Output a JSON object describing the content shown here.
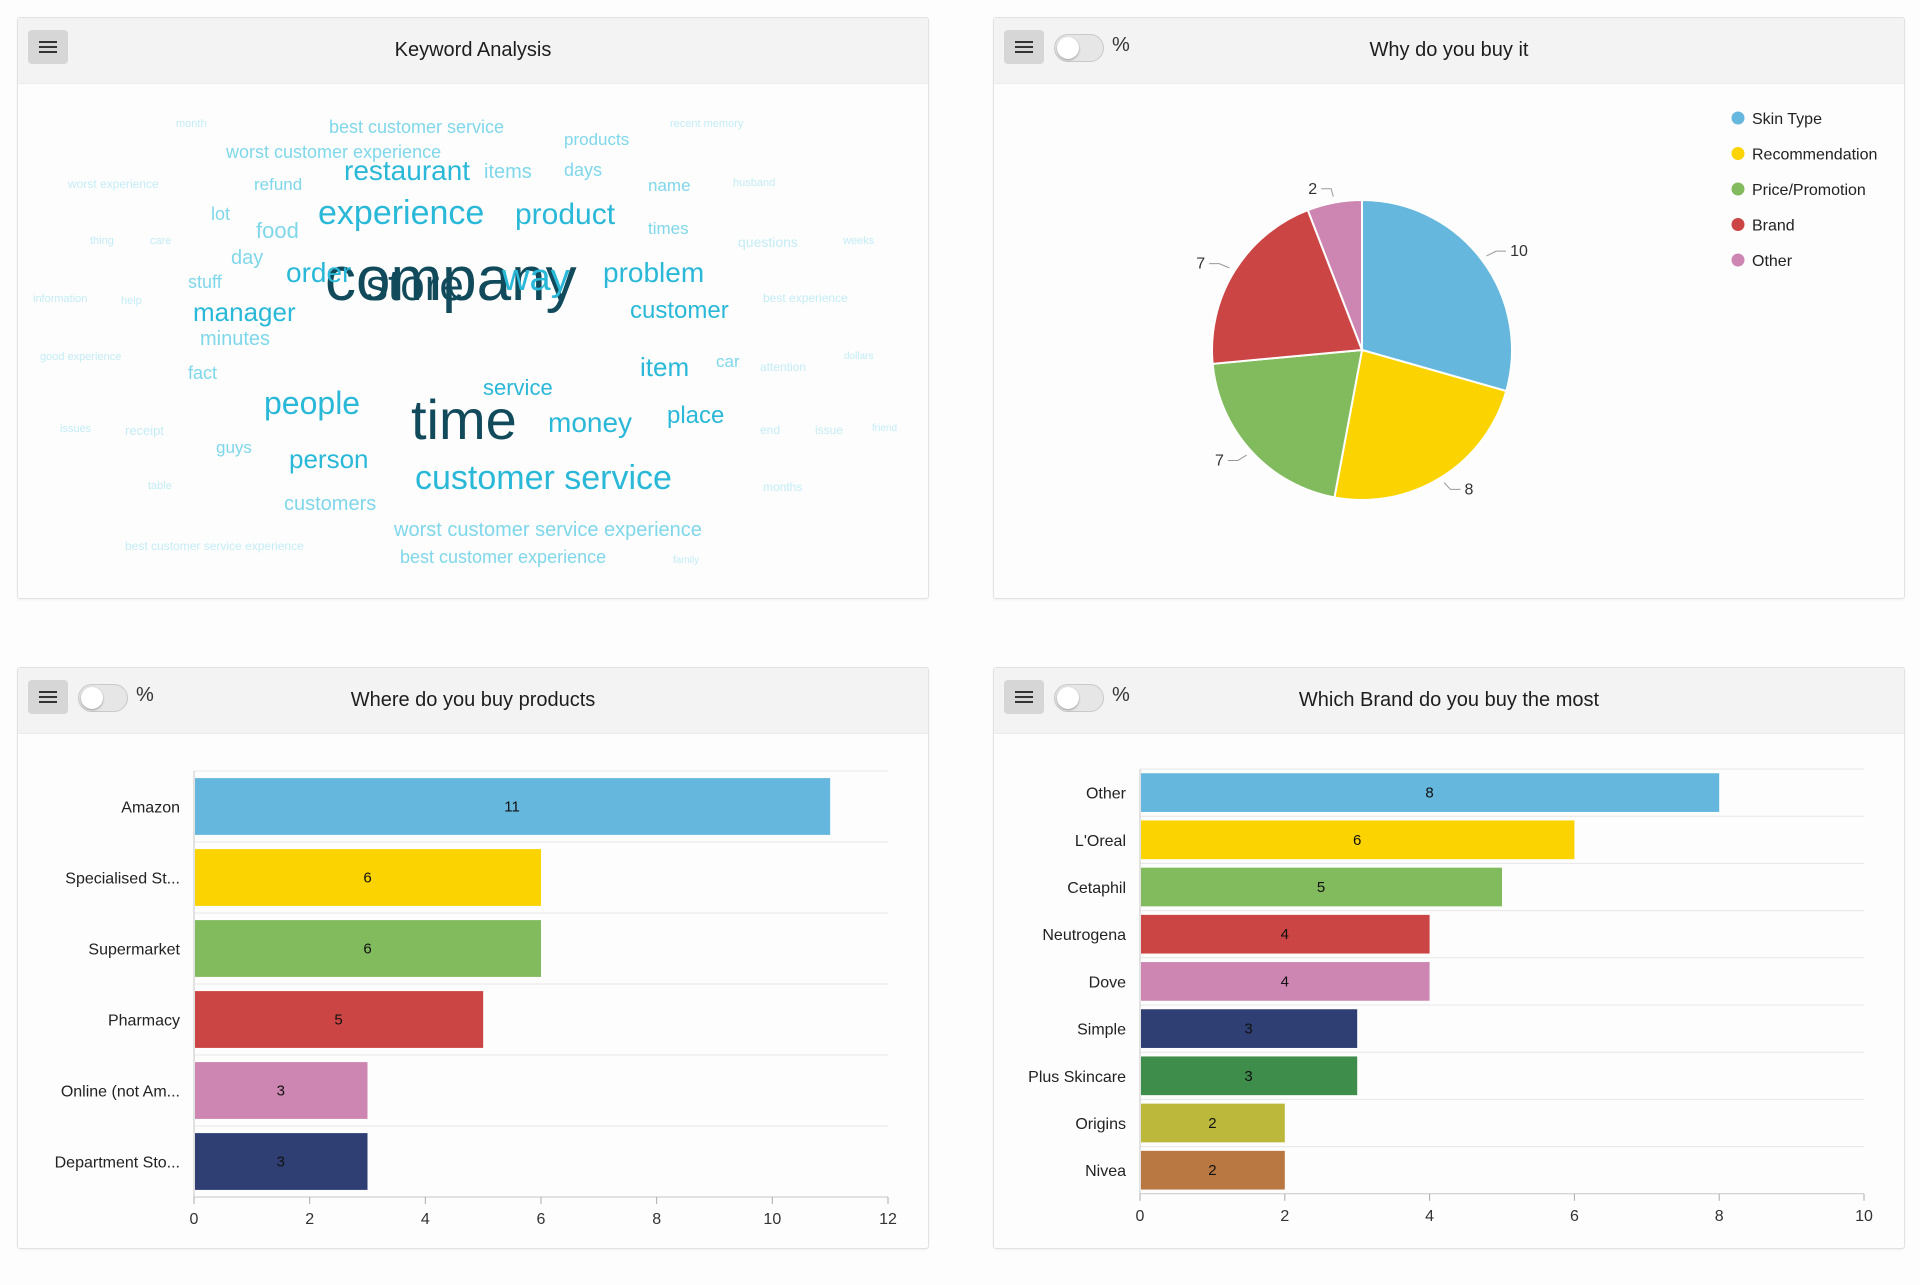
{
  "panels": {
    "keyword": {
      "title": "Keyword Analysis"
    },
    "why": {
      "title": "Why do you buy it",
      "toggle_label": "%"
    },
    "where": {
      "title": "Where do you buy products",
      "toggle_label": "%"
    },
    "brand": {
      "title": "Which Brand do you buy the most",
      "toggle_label": "%"
    }
  },
  "colors": {
    "word_dark": "#114a5a",
    "word_mid": "#2ab8d8",
    "word_light": "#7fd7ea",
    "word_faint": "#c4ecf5"
  },
  "chart_data": [
    {
      "type": "wordcloud",
      "title": "Keyword Analysis",
      "words": [
        {
          "text": "company",
          "weight": 5
        },
        {
          "text": "time",
          "weight": 5
        },
        {
          "text": "store",
          "weight": 4
        },
        {
          "text": "way",
          "weight": 3
        },
        {
          "text": "experience",
          "weight": 3
        },
        {
          "text": "customer service",
          "weight": 3
        },
        {
          "text": "product",
          "weight": 2
        },
        {
          "text": "people",
          "weight": 2
        },
        {
          "text": "order",
          "weight": 2
        },
        {
          "text": "problem",
          "weight": 2
        },
        {
          "text": "money",
          "weight": 2
        },
        {
          "text": "restaurant",
          "weight": 2
        },
        {
          "text": "manager",
          "weight": 2
        },
        {
          "text": "customer",
          "weight": 2
        },
        {
          "text": "item",
          "weight": 2
        },
        {
          "text": "person",
          "weight": 2
        },
        {
          "text": "place",
          "weight": 2
        },
        {
          "text": "service",
          "weight": 2
        },
        {
          "text": "food",
          "weight": 1
        },
        {
          "text": "minutes",
          "weight": 1
        },
        {
          "text": "items",
          "weight": 1
        },
        {
          "text": "customers",
          "weight": 1
        },
        {
          "text": "worst customer service experience",
          "weight": 1
        },
        {
          "text": "best customer experience",
          "weight": 1
        },
        {
          "text": "best customer service",
          "weight": 1
        },
        {
          "text": "worst customer experience",
          "weight": 1
        },
        {
          "text": "products",
          "weight": 1
        },
        {
          "text": "days",
          "weight": 1
        },
        {
          "text": "day",
          "weight": 1
        },
        {
          "text": "stuff",
          "weight": 1
        },
        {
          "text": "fact",
          "weight": 1
        },
        {
          "text": "name",
          "weight": 1
        },
        {
          "text": "times",
          "weight": 1
        },
        {
          "text": "refund",
          "weight": 1
        },
        {
          "text": "lot",
          "weight": 1
        },
        {
          "text": "guys",
          "weight": 1
        },
        {
          "text": "car",
          "weight": 1
        },
        {
          "text": "questions",
          "weight": 0
        },
        {
          "text": "receipt",
          "weight": 0
        },
        {
          "text": "end",
          "weight": 0
        },
        {
          "text": "issue",
          "weight": 0
        },
        {
          "text": "attention",
          "weight": 0
        },
        {
          "text": "best experience",
          "weight": 0
        },
        {
          "text": "months",
          "weight": 0
        },
        {
          "text": "best customer service experience",
          "weight": 0
        },
        {
          "text": "help",
          "weight": 0
        },
        {
          "text": "care",
          "weight": 0
        },
        {
          "text": "thing",
          "weight": 0
        },
        {
          "text": "worst experience",
          "weight": 0
        },
        {
          "text": "husband",
          "weight": 0
        },
        {
          "text": "recent memory",
          "weight": 0
        },
        {
          "text": "month",
          "weight": 0
        },
        {
          "text": "information",
          "weight": 0
        },
        {
          "text": "good experience",
          "weight": 0
        },
        {
          "text": "issues",
          "weight": 0
        },
        {
          "text": "table",
          "weight": 0
        },
        {
          "text": "weeks",
          "weight": 0
        },
        {
          "text": "dollars",
          "weight": 0
        },
        {
          "text": "friend",
          "weight": 0
        },
        {
          "text": "family",
          "weight": 0
        }
      ]
    },
    {
      "type": "pie",
      "title": "Why do you buy it",
      "legend_position": "top-right",
      "slices": [
        {
          "label": "Skin Type",
          "value": 10,
          "color": "#66b7dd"
        },
        {
          "label": "Recommendation",
          "value": 8,
          "color": "#fbd400"
        },
        {
          "label": "Price/Promotion",
          "value": 7,
          "color": "#82ba5e"
        },
        {
          "label": "Brand",
          "value": 7,
          "color": "#cc4545"
        },
        {
          "label": "Other",
          "value": 2,
          "color": "#cd86b1"
        }
      ]
    },
    {
      "type": "bar",
      "orientation": "horizontal",
      "title": "Where do you buy products",
      "categories": [
        "Amazon",
        "Specialised St...",
        "Supermarket",
        "Pharmacy",
        "Online (not Am...",
        "Department Sto..."
      ],
      "values": [
        11,
        6,
        6,
        5,
        3,
        3
      ],
      "colors": [
        "#66b7dd",
        "#fbd400",
        "#82ba5e",
        "#cc4545",
        "#cd86b1",
        "#2f3f74"
      ],
      "xlim": [
        0,
        12
      ],
      "xticks": [
        0,
        2,
        4,
        6,
        8,
        10,
        12
      ],
      "grid": true
    },
    {
      "type": "bar",
      "orientation": "horizontal",
      "title": "Which Brand do you buy the most",
      "categories": [
        "Other",
        "L'Oreal",
        "Cetaphil",
        "Neutrogena",
        "Dove",
        "Simple",
        "Plus Skincare",
        "Origins",
        "Nivea"
      ],
      "values": [
        8,
        6,
        5,
        4,
        4,
        3,
        3,
        2,
        2
      ],
      "colors": [
        "#66b7dd",
        "#fbd400",
        "#82ba5e",
        "#cc4545",
        "#cd86b1",
        "#2f3f74",
        "#3f8d4b",
        "#bbb83b",
        "#b97841"
      ],
      "xlim": [
        0,
        10
      ],
      "xticks": [
        0,
        2,
        4,
        6,
        8,
        10
      ],
      "grid": true
    }
  ]
}
